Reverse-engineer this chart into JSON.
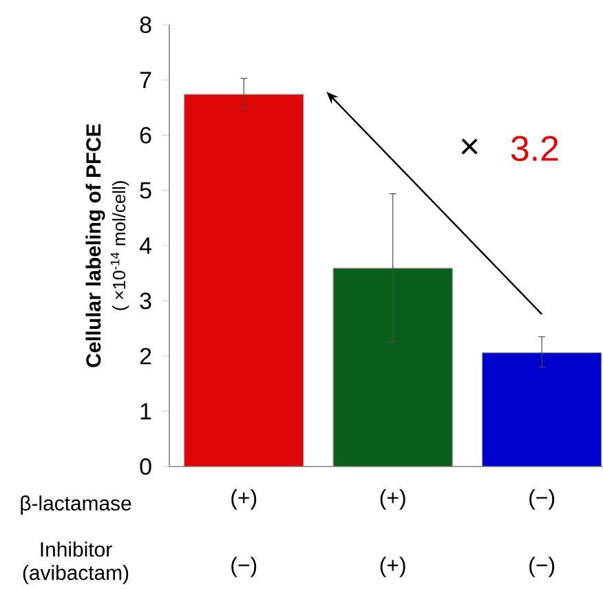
{
  "chart_data": {
    "type": "bar",
    "ylabel": "Cellular labeling of PFCE",
    "categories": [
      "(+)",
      "(+)",
      "(−)"
    ],
    "values": [
      6.74,
      3.59,
      2.06
    ],
    "colors": [
      "#dd0606",
      "#0a5e1b",
      "#0000cc"
    ],
    "errors": [
      [
        6.48,
        7.03
      ],
      [
        2.26,
        4.94
      ],
      [
        1.8,
        2.35
      ]
    ],
    "ylim": [
      0,
      8
    ],
    "yticks": [
      0,
      1,
      2,
      3,
      4,
      5,
      6,
      7,
      8
    ],
    "annotations": [
      "( ×10$^{-14}$ mol/cell)",
      "β-lactamase",
      "Inhibitor (avibactam)",
      "(−)",
      "(+)",
      "(−)",
      "×",
      "3.2"
    ]
  }
}
